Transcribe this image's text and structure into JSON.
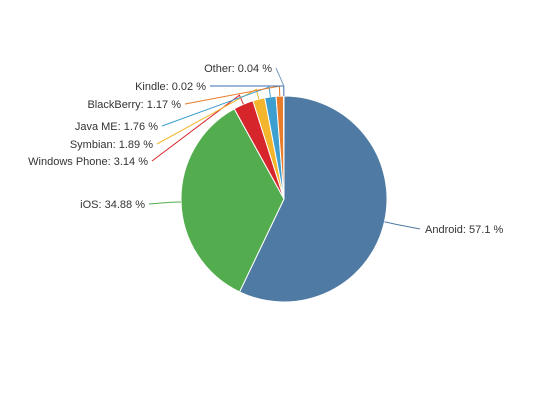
{
  "chart_data": {
    "type": "pie",
    "slices": [
      {
        "label": "Android",
        "value": 57.1,
        "display": "Android: 57.1 %",
        "color": "#4f7aa3"
      },
      {
        "label": "iOS",
        "value": 34.88,
        "display": "iOS: 34.88 %",
        "color": "#53ad4f"
      },
      {
        "label": "Windows Phone",
        "value": 3.14,
        "display": "Windows Phone: 3.14 %",
        "color": "#d6262b"
      },
      {
        "label": "Symbian",
        "value": 1.89,
        "display": "Symbian: 1.89 %",
        "color": "#f2b52b"
      },
      {
        "label": "Java ME",
        "value": 1.76,
        "display": "Java ME: 1.76 %",
        "color": "#3d9fcf"
      },
      {
        "label": "BlackBerry",
        "value": 1.17,
        "display": "BlackBerry: 1.17 %",
        "color": "#e77c2a"
      },
      {
        "label": "Kindle",
        "value": 0.02,
        "display": "Kindle: 0.02 %",
        "color": "#3b6fb5"
      },
      {
        "label": "Other",
        "value": 0.04,
        "display": "Other: 0.04 %",
        "color": "#7a9dc4"
      }
    ],
    "legend": "none"
  }
}
